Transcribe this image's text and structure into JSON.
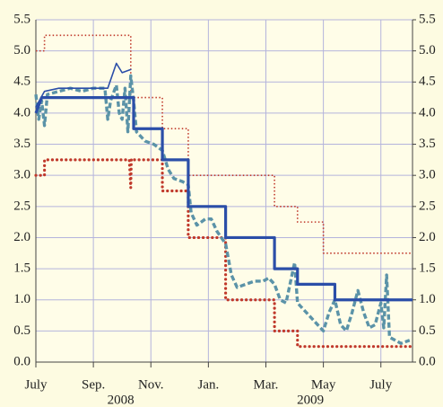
{
  "chart_data": {
    "type": "line",
    "xlim": [
      0,
      13.1
    ],
    "xticks": [
      {
        "value": 0,
        "label": "July"
      },
      {
        "value": 2,
        "label": "Sep."
      },
      {
        "value": 4,
        "label": "Nov."
      },
      {
        "value": 6,
        "label": "Jan."
      },
      {
        "value": 8,
        "label": "Mar."
      },
      {
        "value": 10,
        "label": "May"
      },
      {
        "value": 12,
        "label": "July"
      }
    ],
    "x_year_labels": [
      {
        "value": 2.95,
        "label": "2008"
      },
      {
        "value": 9.55,
        "label": "2009"
      }
    ],
    "ylim": [
      0,
      5.5
    ],
    "yticks": [
      {
        "value": 0,
        "label": "0.0"
      },
      0.5,
      {
        "value": 1,
        "label": "1.0"
      },
      1.5,
      {
        "value": 2,
        "label": "2.0"
      },
      2.5,
      {
        "value": 3,
        "label": "3.0"
      },
      3.5,
      {
        "value": 4,
        "label": "4.0"
      },
      4.5,
      {
        "value": 5,
        "label": "5.0"
      },
      5.5
    ],
    "y2lim": [
      0,
      5.5
    ],
    "y2ticks": [
      {
        "value": 0,
        "label": "0.0"
      },
      0.5,
      {
        "value": 1,
        "label": "1.0"
      },
      1.5,
      {
        "value": 2,
        "label": "2.0"
      },
      2.5,
      {
        "value": 3,
        "label": "3.0"
      },
      3.5,
      {
        "value": 4,
        "label": "4.0"
      },
      4.5,
      {
        "value": 5,
        "label": "5.0"
      },
      5.5
    ],
    "grid": true,
    "series": [
      {
        "color": "#c0392b",
        "style": "dotted",
        "x": [
          0,
          0.3,
          0.3,
          3.3,
          3.3,
          4.4,
          4.4,
          5.3,
          5.3,
          8.3,
          8.3,
          9.1,
          9.1,
          10.0,
          10.0,
          13.1
        ],
        "values": [
          5.0,
          5.0,
          5.25,
          5.25,
          4.25,
          4.25,
          3.75,
          3.75,
          3.0,
          3.0,
          2.5,
          2.5,
          2.25,
          2.25,
          1.75,
          1.75
        ]
      },
      {
        "color": "#c0392b",
        "style": "dotted-heavy",
        "x": [
          0,
          0.3,
          0.3,
          3.25,
          3.3,
          3.32,
          3.3,
          4.4,
          4.4,
          5.3,
          5.3,
          6.6,
          6.6,
          8.3,
          8.3,
          9.1,
          9.1,
          13.1
        ],
        "values": [
          3.0,
          3.0,
          3.25,
          3.25,
          2.8,
          3.25,
          3.25,
          3.25,
          2.75,
          2.75,
          2.0,
          2.0,
          1.0,
          1.0,
          0.5,
          0.5,
          0.25,
          0.25
        ]
      },
      {
        "color": "#5b93a8",
        "style": "dashed",
        "x": [
          0,
          0.1,
          0.2,
          0.3,
          0.4,
          0.8,
          1.2,
          1.6,
          2.0,
          2.4,
          2.5,
          2.6,
          2.8,
          2.9,
          3.0,
          3.1,
          3.2,
          3.3,
          3.4,
          3.5,
          3.8,
          4.1,
          4.4,
          4.6,
          4.8,
          5.1,
          5.3,
          5.4,
          5.6,
          5.9,
          6.1,
          6.3,
          6.6,
          6.8,
          7.0,
          7.3,
          7.6,
          7.9,
          8.1,
          8.3,
          8.5,
          8.7,
          9.0,
          9.1,
          9.3,
          9.6,
          9.8,
          10.0,
          10.2,
          10.4,
          10.6,
          10.8,
          11.0,
          11.2,
          11.4,
          11.6,
          11.8,
          12.0,
          12.1,
          12.2,
          12.3,
          12.5,
          12.7,
          13.0
        ],
        "values": [
          4.3,
          3.9,
          4.2,
          3.8,
          4.3,
          4.35,
          4.4,
          4.35,
          4.4,
          4.4,
          3.9,
          4.2,
          4.45,
          4.0,
          3.9,
          4.4,
          3.7,
          4.6,
          4.2,
          3.7,
          3.55,
          3.5,
          3.4,
          3.1,
          2.95,
          2.9,
          2.85,
          2.4,
          2.2,
          2.3,
          2.3,
          2.1,
          1.9,
          1.4,
          1.2,
          1.25,
          1.3,
          1.3,
          1.35,
          1.25,
          1.0,
          0.95,
          1.6,
          0.95,
          0.85,
          0.7,
          0.6,
          0.5,
          0.8,
          1.0,
          0.6,
          0.5,
          0.8,
          1.15,
          0.8,
          0.55,
          0.6,
          0.95,
          0.55,
          1.4,
          0.4,
          0.35,
          0.3,
          0.35
        ]
      },
      {
        "color": "#2b4ea8",
        "style": "solid",
        "x": [
          0,
          0.3,
          0.8,
          1.4,
          2.0,
          2.5,
          2.8,
          3.0,
          3.3
        ],
        "values": [
          4.1,
          4.35,
          4.4,
          4.4,
          4.4,
          4.4,
          4.8,
          4.65,
          4.7
        ]
      },
      {
        "color": "#2b4ea8",
        "style": "solid-thick",
        "x": [
          0,
          0.2,
          3.4,
          3.4,
          4.4,
          4.4,
          5.3,
          5.3,
          6.6,
          6.6,
          8.3,
          8.3,
          9.1,
          9.1,
          10.4,
          10.4,
          13.1
        ],
        "values": [
          4.0,
          4.25,
          4.25,
          3.75,
          3.75,
          3.25,
          3.25,
          2.5,
          2.5,
          2.0,
          2.0,
          1.5,
          1.5,
          1.25,
          1.25,
          1.0,
          1.0
        ]
      }
    ]
  }
}
